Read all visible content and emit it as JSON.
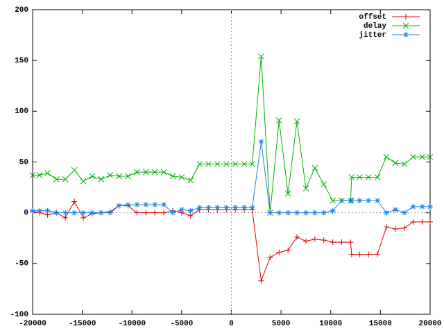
{
  "chart_data": {
    "type": "line",
    "x": [
      -20000,
      -19300,
      -18500,
      -17600,
      -16700,
      -15800,
      -14900,
      -14000,
      -13100,
      -12200,
      -11300,
      -10400,
      -9500,
      -8600,
      -7700,
      -6800,
      -5900,
      -5000,
      -4100,
      -3200,
      -2300,
      -1400,
      -500,
      400,
      1300,
      2100,
      3000,
      3900,
      4800,
      5700,
      6600,
      7500,
      8400,
      9300,
      10200,
      11100,
      12000,
      12100,
      12900,
      13800,
      14700,
      15600,
      16500,
      17400,
      18300,
      19200,
      20000
    ],
    "series": [
      {
        "name": "offset",
        "color": "#e00000",
        "marker": "plus",
        "values": [
          1,
          0,
          -2,
          0,
          -5,
          11,
          -5,
          -1,
          0,
          1,
          7,
          7,
          0,
          0,
          0,
          0,
          2,
          0,
          -3,
          3,
          3,
          3,
          3,
          3,
          3,
          3,
          -67,
          -44,
          -39,
          -37,
          -24,
          -28,
          -26,
          -27,
          -29,
          -29,
          -29,
          -41,
          -41,
          -41,
          -41,
          -14,
          -16,
          -15,
          -9,
          -9,
          -9
        ]
      },
      {
        "name": "delay",
        "color": "#00b000",
        "marker": "cross",
        "values": [
          37,
          37,
          39,
          33,
          33,
          42,
          31,
          36,
          33,
          37,
          36,
          36,
          40,
          40,
          40,
          40,
          36,
          35,
          32,
          48,
          48,
          48,
          48,
          48,
          48,
          48,
          154,
          0,
          91,
          19,
          90,
          24,
          44,
          28,
          12,
          12,
          12,
          35,
          35,
          35,
          35,
          55,
          49,
          48,
          55,
          55,
          55
        ]
      },
      {
        "name": "jitter",
        "color": "#1a80e0",
        "marker": "star",
        "values": [
          2,
          2,
          2,
          0,
          0,
          0,
          0,
          0,
          0,
          0,
          7,
          8,
          8,
          8,
          8,
          8,
          0,
          3,
          2,
          5,
          5,
          5,
          5,
          5,
          5,
          5,
          70,
          0,
          0,
          0,
          0,
          0,
          0,
          0,
          2,
          12,
          12,
          12,
          12,
          12,
          12,
          0,
          3,
          0,
          6,
          6,
          6
        ]
      }
    ],
    "xlim": [
      -20000,
      20000
    ],
    "xticks": [
      -20000,
      -15000,
      -10000,
      -5000,
      0,
      5000,
      10000,
      15000,
      20000
    ],
    "ylim": [
      -100,
      200
    ],
    "yticks": [
      -100,
      -50,
      0,
      50,
      100,
      150,
      200
    ],
    "zero_axes": true,
    "legend": "top-right"
  }
}
